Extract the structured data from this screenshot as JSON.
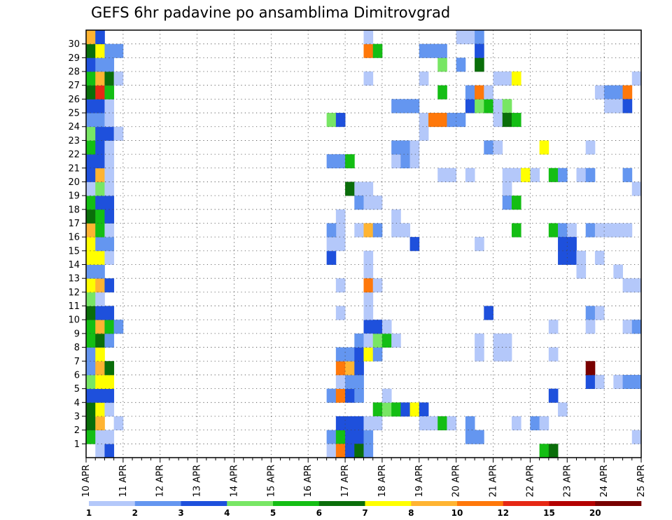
{
  "chart_data": {
    "type": "heatmap",
    "title": "GEFS 6hr padavine po ansamblima Dimitrovgrad",
    "x_tick_labels": [
      "10 APR",
      "11 APR",
      "12 APR",
      "13 APR",
      "14 APR",
      "15 APR",
      "16 APR",
      "17 APR",
      "18 APR",
      "19 APR",
      "20 APR",
      "21 APR",
      "22 APR",
      "23 APR",
      "24 APR",
      "25 APR"
    ],
    "y_tick_labels": [
      "1",
      "2",
      "3",
      "4",
      "5",
      "6",
      "7",
      "8",
      "9",
      "10",
      "11",
      "12",
      "13",
      "14",
      "15",
      "16",
      "17",
      "18",
      "19",
      "20",
      "21",
      "22",
      "23",
      "24",
      "25",
      "26",
      "27",
      "28",
      "29",
      "30"
    ],
    "x_steps": 60,
    "y_rows": 31,
    "grid": true,
    "colorbar": {
      "labels": [
        "1",
        "2",
        "3",
        "4",
        "5",
        "6",
        "7",
        "8",
        "10",
        "12",
        "15",
        "20"
      ],
      "colors": [
        "#b4c8fa",
        "#6496f0",
        "#1e50dc",
        "#78e664",
        "#14be14",
        "#0a6e0a",
        "#ffff00",
        "#ffb432",
        "#ff780a",
        "#e62814",
        "#b40000",
        "#780000"
      ]
    },
    "cells": [
      [
        0,
        1,
        4
      ],
      [
        0,
        2,
        5
      ],
      [
        0,
        3,
        5
      ],
      [
        0,
        4,
        2
      ],
      [
        0,
        5,
        3
      ],
      [
        0,
        6,
        1
      ],
      [
        0,
        7,
        1
      ],
      [
        0,
        8,
        4
      ],
      [
        0,
        9,
        4
      ],
      [
        0,
        10,
        5
      ],
      [
        0,
        11,
        3
      ],
      [
        0,
        12,
        6
      ],
      [
        0,
        13,
        1
      ],
      [
        0,
        14,
        6
      ],
      [
        0,
        15,
        6
      ],
      [
        0,
        16,
        7
      ],
      [
        0,
        17,
        5
      ],
      [
        0,
        18,
        4
      ],
      [
        0,
        19,
        0
      ],
      [
        0,
        20,
        2
      ],
      [
        0,
        21,
        2
      ],
      [
        0,
        22,
        4
      ],
      [
        0,
        23,
        3
      ],
      [
        0,
        24,
        1
      ],
      [
        0,
        25,
        2
      ],
      [
        0,
        26,
        5
      ],
      [
        0,
        27,
        4
      ],
      [
        0,
        28,
        2
      ],
      [
        0,
        29,
        5
      ],
      [
        0,
        30,
        7
      ],
      [
        1,
        0,
        0
      ],
      [
        1,
        1,
        0
      ],
      [
        1,
        2,
        7
      ],
      [
        1,
        3,
        6
      ],
      [
        1,
        4,
        2
      ],
      [
        1,
        5,
        6
      ],
      [
        1,
        6,
        7
      ],
      [
        1,
        7,
        6
      ],
      [
        1,
        8,
        5
      ],
      [
        1,
        9,
        7
      ],
      [
        1,
        10,
        2
      ],
      [
        1,
        11,
        0
      ],
      [
        1,
        12,
        7
      ],
      [
        1,
        13,
        1
      ],
      [
        1,
        14,
        6
      ],
      [
        1,
        15,
        1
      ],
      [
        1,
        16,
        4
      ],
      [
        1,
        17,
        4
      ],
      [
        1,
        18,
        2
      ],
      [
        1,
        19,
        3
      ],
      [
        1,
        20,
        7
      ],
      [
        1,
        21,
        2
      ],
      [
        1,
        22,
        2
      ],
      [
        1,
        23,
        2
      ],
      [
        1,
        24,
        1
      ],
      [
        1,
        25,
        2
      ],
      [
        1,
        26,
        9
      ],
      [
        1,
        27,
        7
      ],
      [
        1,
        28,
        1
      ],
      [
        1,
        29,
        6
      ],
      [
        1,
        30,
        2
      ],
      [
        2,
        0,
        2
      ],
      [
        2,
        1,
        0
      ],
      [
        2,
        3,
        0
      ],
      [
        2,
        4,
        2
      ],
      [
        2,
        5,
        6
      ],
      [
        2,
        6,
        5
      ],
      [
        2,
        8,
        1
      ],
      [
        2,
        9,
        4
      ],
      [
        2,
        10,
        2
      ],
      [
        2,
        12,
        2
      ],
      [
        2,
        14,
        0
      ],
      [
        2,
        15,
        1
      ],
      [
        2,
        16,
        0
      ],
      [
        2,
        17,
        2
      ],
      [
        2,
        18,
        2
      ],
      [
        2,
        19,
        0
      ],
      [
        2,
        20,
        0
      ],
      [
        2,
        21,
        0
      ],
      [
        2,
        22,
        0
      ],
      [
        2,
        23,
        2
      ],
      [
        2,
        24,
        0
      ],
      [
        2,
        25,
        0
      ],
      [
        2,
        26,
        4
      ],
      [
        2,
        27,
        5
      ],
      [
        2,
        28,
        1
      ],
      [
        2,
        29,
        1
      ],
      [
        3,
        2,
        0
      ],
      [
        3,
        9,
        1
      ],
      [
        3,
        23,
        0
      ],
      [
        3,
        27,
        0
      ],
      [
        3,
        29,
        1
      ],
      [
        26,
        1,
        1
      ],
      [
        27,
        1,
        4
      ],
      [
        28,
        1,
        2
      ],
      [
        29,
        1,
        2
      ],
      [
        30,
        1,
        1
      ],
      [
        26,
        0,
        0
      ],
      [
        27,
        0,
        8
      ],
      [
        28,
        0,
        2
      ],
      [
        29,
        0,
        5
      ],
      [
        30,
        0,
        1
      ],
      [
        27,
        2,
        2
      ],
      [
        28,
        2,
        2
      ],
      [
        29,
        2,
        2
      ],
      [
        30,
        2,
        0
      ],
      [
        26,
        4,
        1
      ],
      [
        27,
        4,
        8
      ],
      [
        28,
        4,
        2
      ],
      [
        29,
        4,
        1
      ],
      [
        27,
        5,
        0
      ],
      [
        28,
        5,
        1
      ],
      [
        29,
        5,
        1
      ],
      [
        27,
        6,
        8
      ],
      [
        28,
        6,
        7
      ],
      [
        29,
        6,
        2
      ],
      [
        27,
        7,
        1
      ],
      [
        28,
        7,
        1
      ],
      [
        29,
        7,
        2
      ],
      [
        29,
        8,
        1
      ],
      [
        30,
        9,
        2
      ],
      [
        27,
        15,
        0
      ],
      [
        27,
        16,
        0
      ],
      [
        26,
        14,
        2
      ],
      [
        26,
        15,
        0
      ],
      [
        26,
        16,
        1
      ],
      [
        27,
        10,
        0
      ],
      [
        27,
        12,
        0
      ],
      [
        27,
        17,
        0
      ],
      [
        26,
        21,
        1
      ],
      [
        27,
        21,
        1
      ],
      [
        28,
        21,
        4
      ],
      [
        26,
        24,
        3
      ],
      [
        27,
        24,
        2
      ],
      [
        28,
        19,
        5
      ],
      [
        29,
        19,
        0
      ],
      [
        30,
        19,
        0
      ],
      [
        29,
        18,
        1
      ],
      [
        30,
        18,
        0
      ],
      [
        31,
        18,
        0
      ],
      [
        29,
        16,
        0
      ],
      [
        30,
        16,
        7
      ],
      [
        31,
        16,
        1
      ],
      [
        30,
        14,
        0
      ],
      [
        30,
        13,
        0
      ],
      [
        30,
        10,
        0
      ],
      [
        30,
        11,
        0
      ],
      [
        31,
        3,
        4
      ],
      [
        32,
        3,
        3
      ],
      [
        33,
        3,
        4
      ],
      [
        34,
        3,
        2
      ],
      [
        35,
        3,
        6
      ],
      [
        36,
        3,
        2
      ],
      [
        30,
        7,
        6
      ],
      [
        31,
        7,
        1
      ],
      [
        30,
        8,
        0
      ],
      [
        31,
        8,
        3
      ],
      [
        32,
        8,
        4
      ],
      [
        33,
        8,
        0
      ],
      [
        31,
        9,
        2
      ],
      [
        32,
        9,
        0
      ],
      [
        32,
        4,
        0
      ],
      [
        30,
        2,
        0
      ],
      [
        31,
        2,
        0
      ],
      [
        30,
        12,
        8
      ],
      [
        31,
        12,
        0
      ],
      [
        30,
        27,
        0
      ],
      [
        30,
        29,
        8
      ],
      [
        31,
        29,
        4
      ],
      [
        30,
        30,
        0
      ],
      [
        33,
        21,
        0
      ],
      [
        34,
        21,
        1
      ],
      [
        33,
        22,
        1
      ],
      [
        34,
        22,
        1
      ],
      [
        33,
        16,
        0
      ],
      [
        34,
        16,
        0
      ],
      [
        33,
        17,
        0
      ],
      [
        35,
        15,
        2
      ],
      [
        34,
        25,
        1
      ],
      [
        33,
        25,
        1
      ],
      [
        35,
        25,
        1
      ],
      [
        35,
        21,
        0
      ],
      [
        35,
        22,
        0
      ],
      [
        36,
        23,
        0
      ],
      [
        36,
        2,
        0
      ],
      [
        37,
        2,
        0
      ],
      [
        38,
        2,
        4
      ],
      [
        39,
        2,
        0
      ],
      [
        36,
        29,
        1
      ],
      [
        37,
        29,
        1
      ],
      [
        36,
        24,
        0
      ],
      [
        37,
        24,
        8
      ],
      [
        38,
        24,
        8
      ],
      [
        39,
        24,
        1
      ],
      [
        40,
        24,
        1
      ],
      [
        38,
        20,
        0
      ],
      [
        39,
        20,
        0
      ],
      [
        41,
        20,
        0
      ],
      [
        40,
        30,
        0
      ],
      [
        41,
        30,
        0
      ],
      [
        42,
        30,
        1
      ],
      [
        40,
        28,
        1
      ],
      [
        42,
        28,
        5
      ],
      [
        42,
        29,
        2
      ],
      [
        38,
        26,
        4
      ],
      [
        38,
        28,
        3
      ],
      [
        36,
        27,
        0
      ],
      [
        38,
        29,
        1
      ],
      [
        41,
        25,
        2
      ],
      [
        42,
        25,
        3
      ],
      [
        43,
        25,
        4
      ],
      [
        44,
        25,
        0
      ],
      [
        45,
        25,
        3
      ],
      [
        41,
        26,
        1
      ],
      [
        42,
        26,
        8
      ],
      [
        43,
        26,
        0
      ],
      [
        44,
        27,
        0
      ],
      [
        45,
        27,
        0
      ],
      [
        46,
        27,
        6
      ],
      [
        44,
        24,
        0
      ],
      [
        45,
        24,
        5
      ],
      [
        46,
        24,
        4
      ],
      [
        43,
        22,
        1
      ],
      [
        44,
        22,
        0
      ],
      [
        45,
        19,
        0
      ],
      [
        45,
        18,
        1
      ],
      [
        46,
        18,
        4
      ],
      [
        45,
        20,
        0
      ],
      [
        46,
        20,
        0
      ],
      [
        42,
        15,
        0
      ],
      [
        42,
        7,
        0
      ],
      [
        42,
        8,
        0
      ],
      [
        41,
        1,
        1
      ],
      [
        42,
        1,
        1
      ],
      [
        41,
        2,
        1
      ],
      [
        43,
        10,
        2
      ],
      [
        44,
        7,
        0
      ],
      [
        44,
        8,
        0
      ],
      [
        45,
        8,
        0
      ],
      [
        45,
        7,
        0
      ],
      [
        46,
        16,
        4
      ],
      [
        47,
        20,
        6
      ],
      [
        48,
        20,
        0
      ],
      [
        50,
        20,
        4
      ],
      [
        51,
        20,
        1
      ],
      [
        53,
        20,
        0
      ],
      [
        54,
        20,
        1
      ],
      [
        48,
        2,
        1
      ],
      [
        49,
        2,
        0
      ],
      [
        49,
        22,
        6
      ],
      [
        46,
        2,
        0
      ],
      [
        49,
        0,
        4
      ],
      [
        50,
        0,
        5
      ],
      [
        50,
        16,
        4
      ],
      [
        51,
        16,
        1
      ],
      [
        52,
        16,
        0
      ],
      [
        51,
        15,
        2
      ],
      [
        52,
        15,
        2
      ],
      [
        51,
        14,
        2
      ],
      [
        52,
        14,
        2
      ],
      [
        50,
        4,
        2
      ],
      [
        50,
        9,
        0
      ],
      [
        50,
        7,
        0
      ],
      [
        51,
        3,
        0
      ],
      [
        54,
        5,
        2
      ],
      [
        55,
        5,
        0
      ],
      [
        54,
        6,
        11
      ],
      [
        53,
        13,
        0
      ],
      [
        53,
        14,
        0
      ],
      [
        54,
        10,
        1
      ],
      [
        55,
        10,
        0
      ],
      [
        54,
        16,
        1
      ],
      [
        55,
        16,
        0
      ],
      [
        56,
        16,
        0
      ],
      [
        57,
        16,
        0
      ],
      [
        58,
        16,
        0
      ],
      [
        54,
        9,
        0
      ],
      [
        55,
        14,
        0
      ],
      [
        57,
        13,
        0
      ],
      [
        57,
        5,
        0
      ],
      [
        58,
        5,
        1
      ],
      [
        59,
        5,
        1
      ],
      [
        58,
        9,
        0
      ],
      [
        59,
        9,
        1
      ],
      [
        58,
        12,
        0
      ],
      [
        59,
        12,
        0
      ],
      [
        54,
        22,
        0
      ],
      [
        55,
        26,
        0
      ],
      [
        56,
        26,
        1
      ],
      [
        57,
        26,
        1
      ],
      [
        58,
        26,
        8
      ],
      [
        56,
        25,
        0
      ],
      [
        57,
        25,
        0
      ],
      [
        58,
        25,
        2
      ],
      [
        59,
        27,
        0
      ],
      [
        58,
        20,
        1
      ],
      [
        59,
        19,
        0
      ],
      [
        59,
        1,
        0
      ]
    ]
  }
}
